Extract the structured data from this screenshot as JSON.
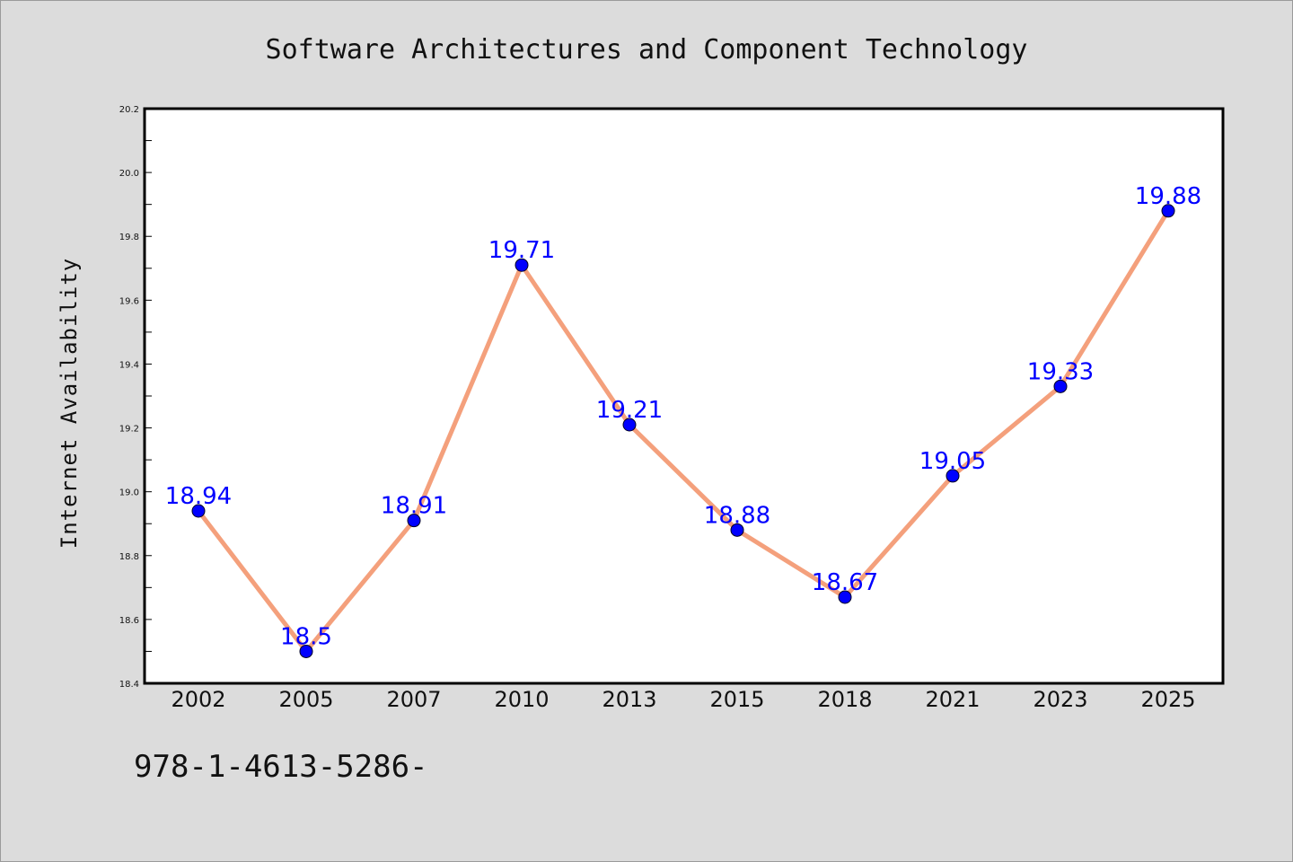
{
  "chart_data": {
    "type": "line",
    "title": "Software Architectures and Component Technology",
    "xlabel": "",
    "ylabel": "Internet Availability",
    "categories": [
      "2002",
      "2005",
      "2007",
      "2010",
      "2013",
      "2015",
      "2018",
      "2021",
      "2023",
      "2025"
    ],
    "series": [
      {
        "values": [
          18.94,
          18.5,
          18.91,
          19.71,
          19.21,
          18.88,
          18.67,
          19.05,
          19.33,
          19.88
        ]
      }
    ],
    "data_labels": [
      "18.94",
      "18.5",
      "18.91",
      "19.71",
      "19.21",
      "18.88",
      "18.67",
      "19.05",
      "19.33",
      "19.88"
    ],
    "ylim": [
      18.4,
      20.2
    ],
    "yticks": [
      "18.4",
      "18.6",
      "18.8",
      "19.0",
      "19.2",
      "19.4",
      "19.6",
      "19.8",
      "20.0",
      "20.2"
    ],
    "grid": false,
    "legend": "none",
    "colors": {
      "line": "#f4a07c",
      "marker": "#0000ff",
      "label": "#0000ff",
      "background": "#dcdcdc",
      "plot_background": "#ffffff"
    }
  },
  "footer": {
    "isbn": "978-1-4613-5286-"
  }
}
